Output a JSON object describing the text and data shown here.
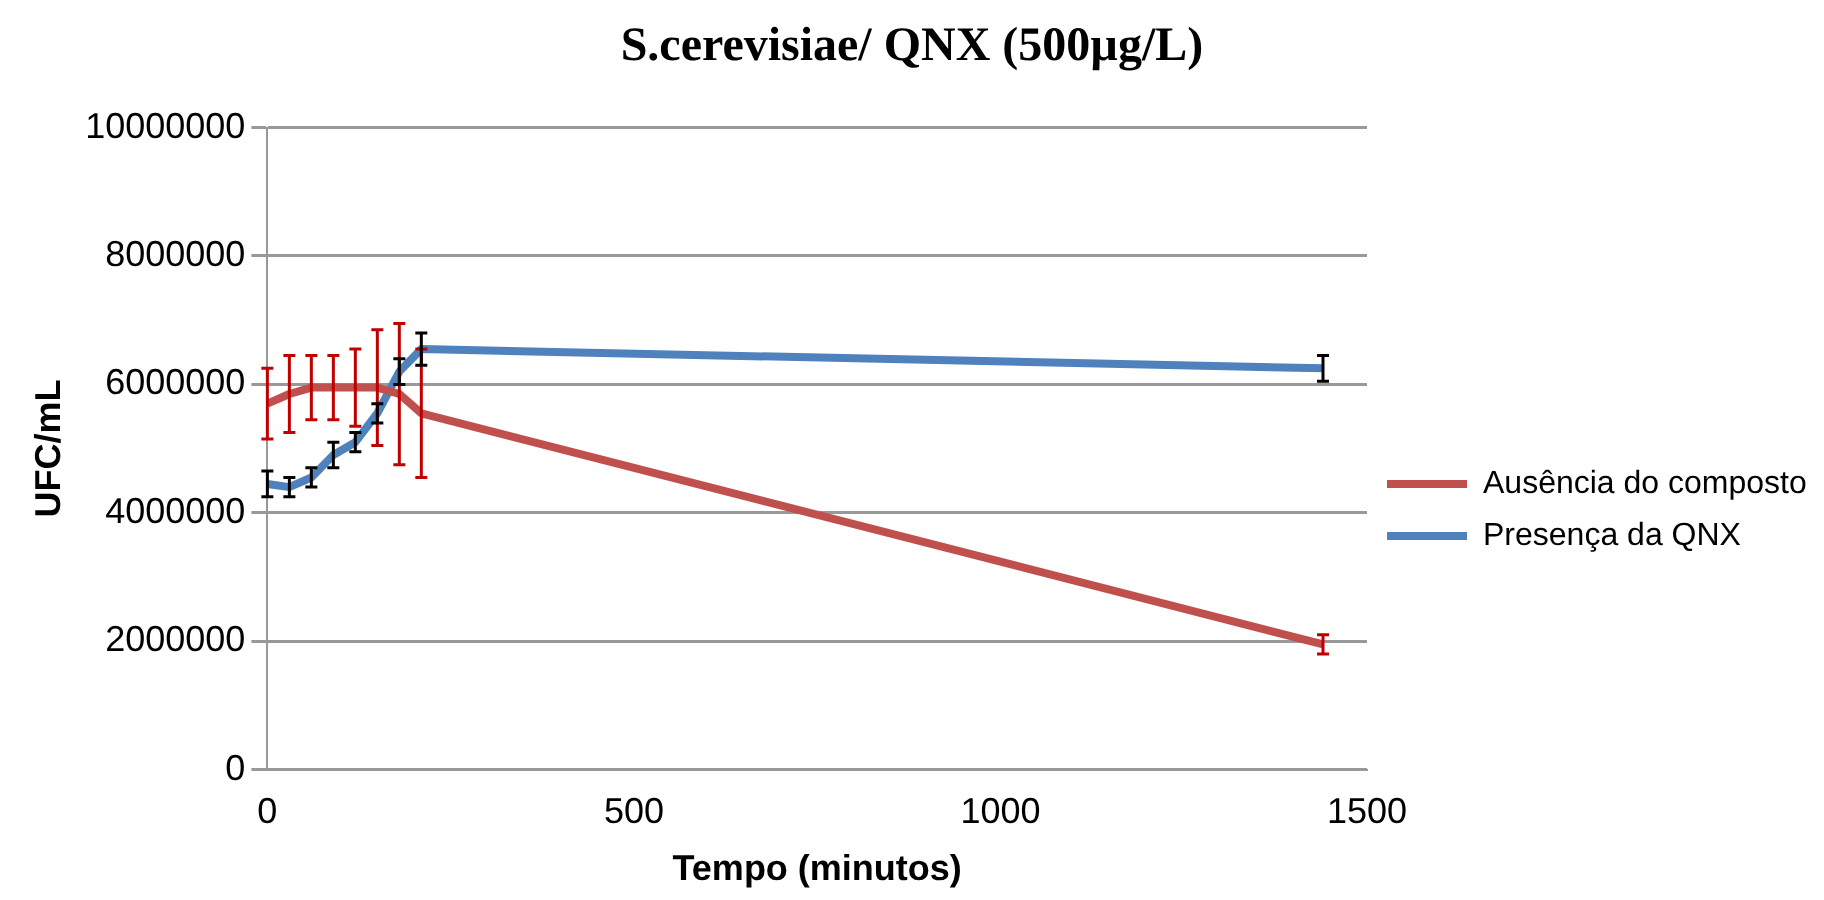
{
  "chart_data": {
    "type": "line",
    "title": "S.cerevisiae/ QNX (500µg/L)",
    "xlabel": "Tempo (minutos)",
    "ylabel": "UFC/mL",
    "x": [
      0,
      30,
      60,
      90,
      120,
      150,
      180,
      210,
      1440
    ],
    "series": [
      {
        "name": "Ausência do composto",
        "color": "#c0504d",
        "values": [
          5700000,
          5850000,
          5950000,
          5950000,
          5950000,
          5950000,
          5850000,
          5550000,
          1950000
        ],
        "errors": [
          550000,
          600000,
          500000,
          500000,
          600000,
          900000,
          1100000,
          1000000,
          150000
        ]
      },
      {
        "name": "Presença da QNX",
        "color": "#4f81bd",
        "values": [
          4450000,
          4400000,
          4550000,
          4900000,
          5100000,
          5550000,
          6200000,
          6550000,
          6250000
        ],
        "errors": [
          200000,
          150000,
          150000,
          200000,
          150000,
          150000,
          200000,
          250000,
          200000
        ]
      }
    ],
    "xlim": [
      0,
      1500
    ],
    "xticks": [
      0,
      500,
      1000,
      1500
    ],
    "ylim": [
      0,
      10000000
    ],
    "yticks": [
      0,
      2000000,
      4000000,
      6000000,
      8000000,
      10000000
    ],
    "grid": "y",
    "legend": "right",
    "marker": "none"
  }
}
